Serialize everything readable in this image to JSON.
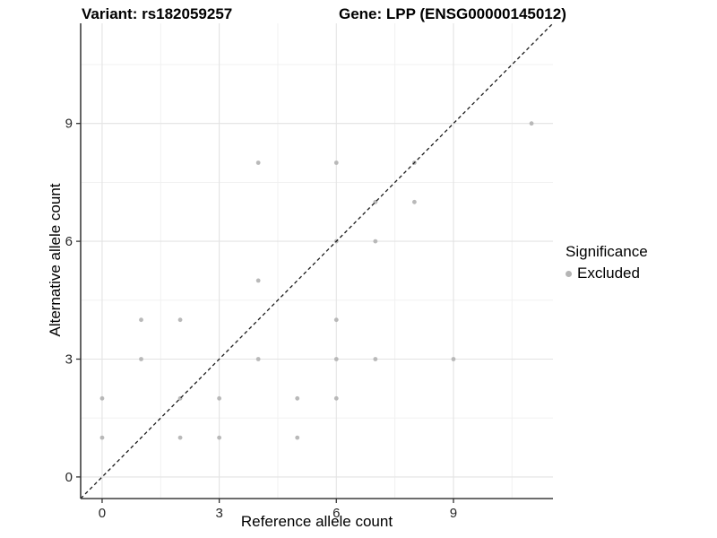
{
  "titles": {
    "left": "Variant: rs182059257",
    "right": "Gene: LPP (ENSG00000145012)"
  },
  "chart_data": {
    "type": "scatter",
    "xlabel": "Reference allele count",
    "ylabel": "Alternative allele count",
    "xlim": [
      -0.55,
      11.55
    ],
    "ylim": [
      -0.55,
      11.55
    ],
    "xticks": [
      0,
      3,
      6,
      9
    ],
    "yticks": [
      0,
      3,
      6,
      9
    ],
    "minor_breaks": [
      1.5,
      4.5,
      7.5,
      10.5
    ],
    "grid": true,
    "identity_line": {
      "style": "dashed",
      "slope": 1,
      "intercept": 0
    },
    "series": [
      {
        "name": "Excluded",
        "points": [
          [
            0,
            1
          ],
          [
            0,
            2
          ],
          [
            1,
            3
          ],
          [
            1,
            4
          ],
          [
            2,
            1
          ],
          [
            2,
            2
          ],
          [
            2,
            4
          ],
          [
            3,
            1
          ],
          [
            3,
            2
          ],
          [
            4,
            3
          ],
          [
            4,
            5
          ],
          [
            4,
            8
          ],
          [
            5,
            1
          ],
          [
            5,
            2
          ],
          [
            6,
            2
          ],
          [
            6,
            3
          ],
          [
            6,
            4
          ],
          [
            6,
            6
          ],
          [
            6,
            8
          ],
          [
            7,
            3
          ],
          [
            7,
            6
          ],
          [
            7,
            7
          ],
          [
            8,
            7
          ],
          [
            8,
            8
          ],
          [
            9,
            3
          ],
          [
            11,
            9
          ]
        ]
      }
    ],
    "legend": {
      "title": "Significance",
      "position": "right",
      "entries": [
        {
          "label": "Excluded",
          "color": "#b5b5b5"
        }
      ]
    }
  },
  "colors": {
    "background": "#ffffff",
    "grid_major": "#e3e3e3",
    "grid_minor": "#f0f0f0",
    "axis_line": "#3d3d3d",
    "tick_mark": "#333333",
    "tick_label": "#262626",
    "point": "#b5b5b5",
    "identity_line": "#1a1a1a",
    "title": "#000000"
  }
}
